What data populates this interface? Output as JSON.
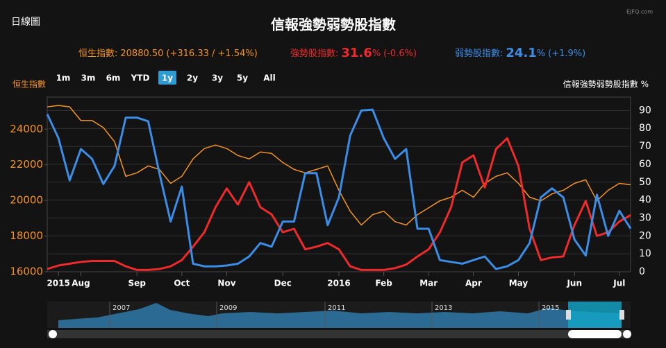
{
  "chart_data": {
    "type": "line",
    "title": "信報強勢弱勢股指數",
    "mode": "日線圖",
    "source": "EJFQ.com",
    "info": [
      {
        "label": "恒生指數:",
        "value": "20880.50",
        "unit": "",
        "change": "(+316.33 / +1.54%)",
        "color": "#f7941d"
      },
      {
        "label": "強勢股指數:",
        "value": "31.6",
        "unit": "%",
        "change": "(-0.6%)",
        "color": "#ee2a2a"
      },
      {
        "label": "弱勢股指數:",
        "value": "24.1",
        "unit": "%",
        "change": "(+1.9%)",
        "color": "#3b8ee8"
      }
    ],
    "buttons": [
      "1m",
      "3m",
      "6m",
      "YTD",
      "1y",
      "2y",
      "3y",
      "5y",
      "All"
    ],
    "selected_button": "1y",
    "ylabel": "恒生指數",
    "y2label": "信報強勢弱勢股指數 %",
    "categories": [
      null,
      "2015",
      null,
      "Aug",
      null,
      null,
      null,
      null,
      "Sep",
      null,
      null,
      null,
      "Oct",
      null,
      null,
      null,
      "Nov",
      null,
      null,
      null,
      null,
      "Dec",
      null,
      null,
      null,
      null,
      "2016",
      null,
      null,
      null,
      "Feb",
      null,
      null,
      null,
      "Mar",
      null,
      null,
      null,
      "Apr",
      null,
      null,
      null,
      "May",
      null,
      null,
      null,
      null,
      "Jun",
      null,
      null,
      null,
      "Jul",
      null
    ],
    "ylim": [
      16000,
      25800
    ],
    "yticks": [
      16000,
      18000,
      20000,
      22000,
      24000
    ],
    "y2lim": [
      0,
      97.5
    ],
    "y2ticks": [
      0,
      10,
      20,
      30,
      40,
      50,
      60,
      70,
      80,
      90
    ],
    "grid": true,
    "series": [
      {
        "color": "#f7941d",
        "axis": "y",
        "values": [
          25250,
          25330,
          25250,
          24480,
          24480,
          24090,
          23300,
          21350,
          21550,
          21940,
          21740,
          20960,
          21350,
          22330,
          22910,
          23110,
          22910,
          22520,
          22330,
          22720,
          22640,
          22130,
          21740,
          21550,
          21740,
          21940,
          20570,
          19400,
          18620,
          19200,
          19400,
          18810,
          18620,
          19200,
          19590,
          19980,
          20180,
          20570,
          20180,
          20960,
          21350,
          21550,
          20960,
          20180,
          19980,
          20370,
          20570,
          20960,
          21160,
          19980,
          20570,
          20960,
          20880.5
        ]
      },
      {
        "color": "#ee2a2a",
        "axis": "y2",
        "values": [
          1.5,
          3.5,
          4.5,
          5.5,
          6,
          6,
          6,
          3,
          1,
          1,
          1.5,
          3,
          6.5,
          14,
          22,
          36,
          46.5,
          37.5,
          50,
          36,
          32,
          22,
          24,
          12.5,
          14,
          16,
          12.5,
          3,
          1,
          1,
          1,
          2,
          4,
          8.5,
          12.5,
          22,
          36,
          61,
          65,
          47,
          68.5,
          74.5,
          59,
          24,
          6.5,
          8,
          8.5,
          26,
          39.5,
          20,
          22,
          28,
          31.6
        ]
      },
      {
        "color": "#3b8ee8",
        "axis": "y2",
        "values": [
          88,
          74.5,
          51,
          68.5,
          63,
          49,
          59,
          86,
          86,
          84,
          55,
          28,
          47.5,
          4.5,
          3,
          3,
          3.5,
          4.5,
          8.5,
          16,
          14,
          28,
          28,
          55,
          55,
          26,
          41.5,
          76,
          90,
          90.5,
          74.5,
          63,
          68.5,
          24,
          24,
          6.5,
          5.5,
          4.5,
          6.5,
          8.5,
          1.5,
          3,
          6.5,
          16,
          41.5,
          46.5,
          41.5,
          18,
          9,
          43,
          20,
          34,
          24.1
        ]
      }
    ],
    "navigator_labels": [
      "2007",
      "2009",
      "2011",
      "2013",
      "2015"
    ]
  }
}
